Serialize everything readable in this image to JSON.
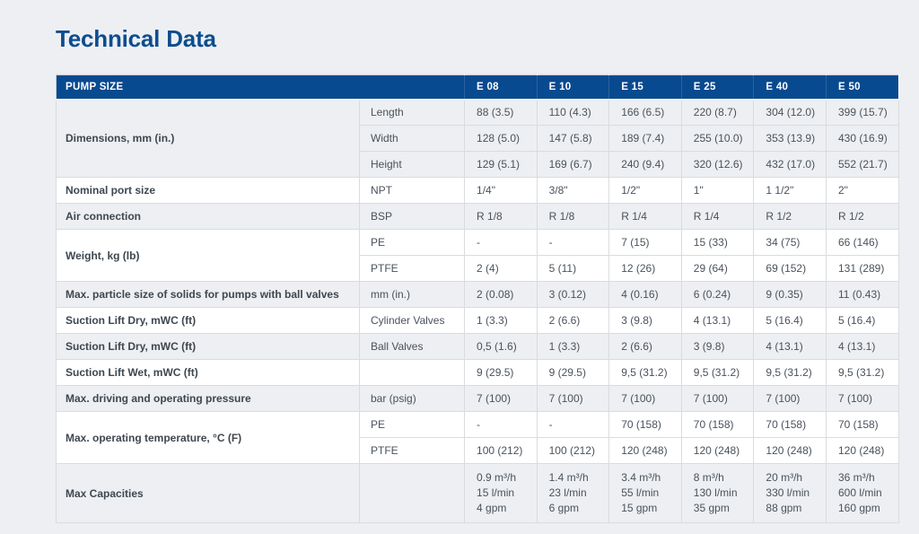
{
  "page": {
    "title": "Technical Data"
  },
  "table": {
    "header": {
      "label": "PUMP SIZE",
      "columns": [
        "E 08",
        "E 10",
        "E 15",
        "E 25",
        "E 40",
        "E 50"
      ]
    },
    "groups": [
      {
        "label": "Dimensions, mm (in.)",
        "rows": [
          {
            "sub": "Length",
            "values": [
              "88 (3.5)",
              "110 (4.3)",
              "166 (6.5)",
              "220 (8.7)",
              "304 (12.0)",
              "399 (15.7)"
            ]
          },
          {
            "sub": "Width",
            "values": [
              "128 (5.0)",
              "147 (5.8)",
              "189 (7.4)",
              "255 (10.0)",
              "353 (13.9)",
              "430 (16.9)"
            ]
          },
          {
            "sub": "Height",
            "values": [
              "129 (5.1)",
              "169 (6.7)",
              "240 (9.4)",
              "320 (12.6)",
              "432 (17.0)",
              "552 (21.7)"
            ]
          }
        ]
      },
      {
        "label": "Nominal port size",
        "rows": [
          {
            "sub": "NPT",
            "values": [
              "1/4\"",
              "3/8\"",
              "1/2\"",
              "1\"",
              "1 1/2\"",
              "2\""
            ]
          }
        ]
      },
      {
        "label": "Air connection",
        "rows": [
          {
            "sub": "BSP",
            "values": [
              "R 1/8",
              "R 1/8",
              "R 1/4",
              "R 1/4",
              "R 1/2",
              "R 1/2"
            ]
          }
        ]
      },
      {
        "label": "Weight, kg (lb)",
        "rows": [
          {
            "sub": "PE",
            "values": [
              "-",
              "-",
              "7 (15)",
              "15 (33)",
              "34 (75)",
              "66 (146)"
            ]
          },
          {
            "sub": "PTFE",
            "values": [
              "2 (4)",
              "5 (11)",
              "12 (26)",
              "29 (64)",
              "69 (152)",
              "131 (289)"
            ]
          }
        ]
      },
      {
        "label": "Max. particle size of solids for pumps with ball valves",
        "rows": [
          {
            "sub": "mm (in.)",
            "values": [
              "2 (0.08)",
              "3 (0.12)",
              "4 (0.16)",
              "6 (0.24)",
              "9 (0.35)",
              "11 (0.43)"
            ]
          }
        ]
      },
      {
        "label": "Suction Lift Dry, mWC (ft)",
        "rows": [
          {
            "sub": "Cylinder Valves",
            "values": [
              "1 (3.3)",
              "2 (6.6)",
              "3 (9.8)",
              "4 (13.1)",
              "5 (16.4)",
              "5 (16.4)"
            ]
          }
        ]
      },
      {
        "label": "Suction Lift Dry, mWC (ft)",
        "rows": [
          {
            "sub": "Ball Valves",
            "values": [
              "0,5 (1.6)",
              "1 (3.3)",
              "2 (6.6)",
              "3 (9.8)",
              "4 (13.1)",
              "4 (13.1)"
            ]
          }
        ]
      },
      {
        "label": "Suction Lift Wet, mWC (ft)",
        "rows": [
          {
            "sub": "",
            "values": [
              "9 (29.5)",
              "9 (29.5)",
              "9,5 (31.2)",
              "9,5 (31.2)",
              "9,5 (31.2)",
              "9,5 (31.2)"
            ]
          }
        ]
      },
      {
        "label": "Max. driving and operating pressure",
        "rows": [
          {
            "sub": "bar (psig)",
            "values": [
              "7 (100)",
              "7 (100)",
              "7 (100)",
              "7 (100)",
              "7 (100)",
              "7 (100)"
            ]
          }
        ]
      },
      {
        "label": "Max. operating temperature, °C (F)",
        "rows": [
          {
            "sub": "PE",
            "values": [
              "-",
              "-",
              "70 (158)",
              "70 (158)",
              "70 (158)",
              "70 (158)"
            ]
          },
          {
            "sub": "PTFE",
            "values": [
              "100 (212)",
              "100 (212)",
              "120 (248)",
              "120 (248)",
              "120 (248)",
              "120 (248)"
            ]
          }
        ]
      },
      {
        "label": "Max Capacities",
        "rows": [
          {
            "sub": "",
            "values": [
              [
                "0.9 m³/h",
                "15 l/min",
                "4 gpm"
              ],
              [
                "1.4 m³/h",
                "23 l/min",
                "6 gpm"
              ],
              [
                "3.4 m³/h",
                "55 l/min",
                "15 gpm"
              ],
              [
                "8 m³/h",
                "130 l/min",
                "35 gpm"
              ],
              [
                "20 m³/h",
                "330 l/min",
                "88 gpm"
              ],
              [
                "36 m³/h",
                "600 l/min",
                "160 gpm"
              ]
            ]
          }
        ]
      }
    ]
  }
}
